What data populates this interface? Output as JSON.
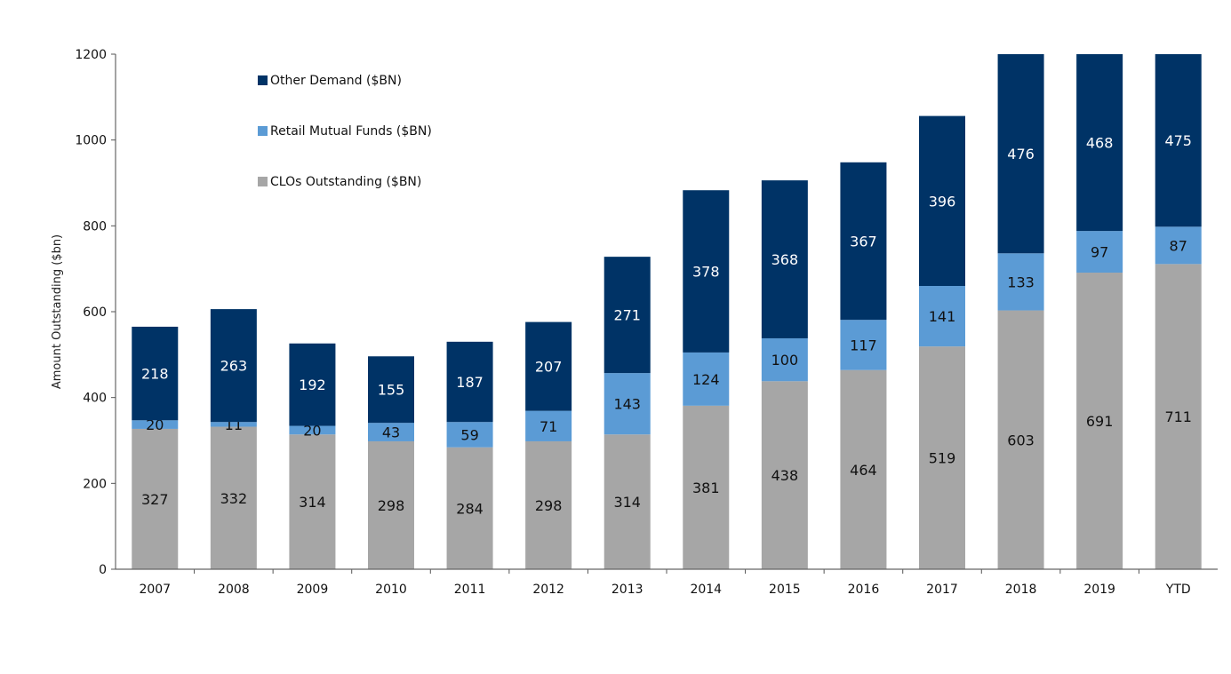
{
  "chart_data": {
    "type": "bar",
    "stacked": true,
    "title": "",
    "xlabel": "",
    "ylabel": "Amount Outstanding ($bn)",
    "ylim": [
      0,
      1200
    ],
    "yticks": [
      0,
      200,
      400,
      600,
      800,
      1000,
      1200
    ],
    "grid": false,
    "legend_position": "top-left",
    "categories": [
      "2007",
      "2008",
      "2009",
      "2010",
      "2011",
      "2012",
      "2013",
      "2014",
      "2015",
      "2016",
      "2017",
      "2018",
      "2019",
      "YTD"
    ],
    "series": [
      {
        "name": "CLOs Outstanding ($BN)",
        "color": "#a6a6a6",
        "label_color": "#111111",
        "values": [
          327,
          332,
          314,
          298,
          284,
          298,
          314,
          381,
          438,
          464,
          519,
          603,
          691,
          711
        ]
      },
      {
        "name": "Retail Mutual Funds ($BN)",
        "color": "#5b9bd5",
        "label_color": "#111111",
        "values": [
          20,
          11,
          20,
          43,
          59,
          71,
          143,
          124,
          100,
          117,
          141,
          133,
          97,
          87
        ]
      },
      {
        "name": "Other Demand ($BN)",
        "color": "#003366",
        "label_color": "#ffffff",
        "values": [
          218,
          263,
          192,
          155,
          187,
          207,
          271,
          378,
          368,
          367,
          396,
          476,
          468,
          475
        ]
      }
    ],
    "legend_order": [
      2,
      1,
      0
    ]
  }
}
